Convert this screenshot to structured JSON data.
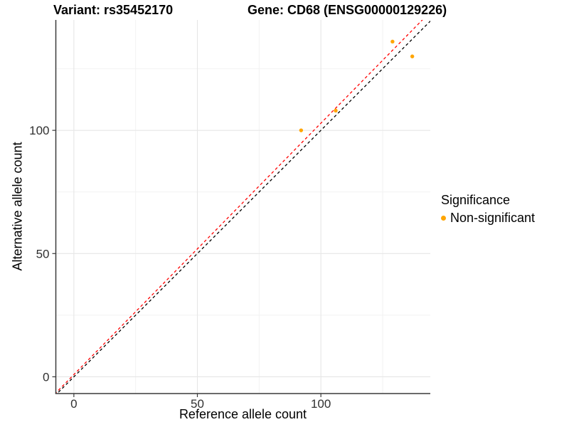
{
  "header": {
    "variant_title": "Variant: rs35452170",
    "gene_title": "Gene: CD68 (ENSG00000129226)"
  },
  "axes": {
    "x_label": "Reference allele count",
    "y_label": "Alternative allele count"
  },
  "legend": {
    "title": "Significance",
    "items": [
      {
        "label": "Non-significant",
        "color": "#FFA500",
        "marker": "circle-icon"
      }
    ]
  },
  "colors": {
    "background": "#ffffff",
    "axis_line": "#3A3A3A",
    "tick_label": "#303030",
    "grid_major": "#E6E6E6",
    "grid_minor": "#F2F2F2",
    "point": "#FFA500",
    "identity_line": "#000000",
    "fit_line": "#FF0000"
  },
  "chart_data": {
    "type": "scatter",
    "title": "Variant: rs35452170 — Gene: CD68 (ENSG00000129226)",
    "xlabel": "Reference allele count",
    "ylabel": "Alternative allele count",
    "xlim": [
      -7.3,
      144.3
    ],
    "ylim": [
      -6.8,
      144.8
    ],
    "x_major_ticks": [
      0,
      50,
      100
    ],
    "y_major_ticks": [
      0,
      50,
      100
    ],
    "x_minor_ticks": [
      25,
      75,
      125
    ],
    "y_minor_ticks": [
      25,
      75,
      125
    ],
    "grid": true,
    "legend_position": "right-center",
    "series": [
      {
        "name": "Non-significant",
        "color": "#FFA500",
        "marker": "circle",
        "points": [
          {
            "x": 92,
            "y": 100
          },
          {
            "x": 106,
            "y": 108
          },
          {
            "x": 129,
            "y": 136
          },
          {
            "x": 137,
            "y": 130
          }
        ]
      }
    ],
    "reference_lines": [
      {
        "name": "identity",
        "slope": 1.0,
        "intercept": 0.0,
        "color": "#000000",
        "dash": "dashed"
      },
      {
        "name": "fit",
        "slope": 1.02,
        "intercept": 0.9,
        "color": "#FF0000",
        "dash": "dashed"
      }
    ]
  }
}
